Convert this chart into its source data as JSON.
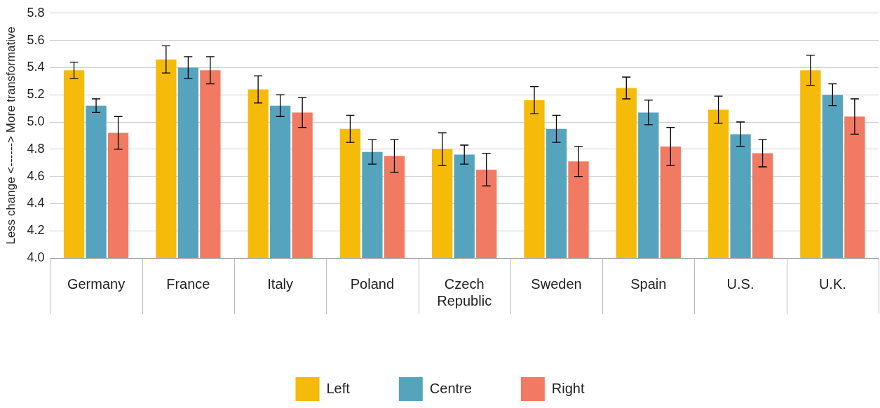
{
  "chart_data": {
    "type": "bar",
    "ylabel": "Less change <------> More transformative",
    "categories": [
      "Germany",
      "France",
      "Italy",
      "Poland",
      "Czech Republic",
      "Sweden",
      "Spain",
      "U.S.",
      "U.K."
    ],
    "series": [
      {
        "name": "Left",
        "color": "#f5bb0a",
        "values": [
          5.38,
          5.46,
          5.24,
          4.95,
          4.8,
          5.16,
          5.25,
          5.09,
          5.38
        ],
        "errors": [
          0.06,
          0.1,
          0.1,
          0.1,
          0.12,
          0.1,
          0.08,
          0.1,
          0.11
        ]
      },
      {
        "name": "Centre",
        "color": "#56a3bd",
        "values": [
          5.12,
          5.4,
          5.12,
          4.78,
          4.76,
          4.95,
          5.07,
          4.91,
          5.2
        ],
        "errors": [
          0.05,
          0.08,
          0.08,
          0.09,
          0.07,
          0.1,
          0.09,
          0.09,
          0.08
        ]
      },
      {
        "name": "Right",
        "color": "#f07a62",
        "values": [
          4.92,
          5.38,
          5.07,
          4.75,
          4.65,
          4.71,
          4.82,
          4.77,
          5.04
        ],
        "errors": [
          0.12,
          0.1,
          0.11,
          0.12,
          0.12,
          0.11,
          0.14,
          0.1,
          0.13
        ]
      }
    ],
    "ylim": [
      4.0,
      5.8
    ],
    "yticks": [
      {
        "value": 4,
        "label": "4.0"
      },
      4.2,
      4.4,
      4.6,
      4.8,
      {
        "value": 5,
        "label": "5.0"
      },
      5.2,
      5.4,
      5.6,
      5.8
    ],
    "grid": "y",
    "legend": "bottom"
  }
}
